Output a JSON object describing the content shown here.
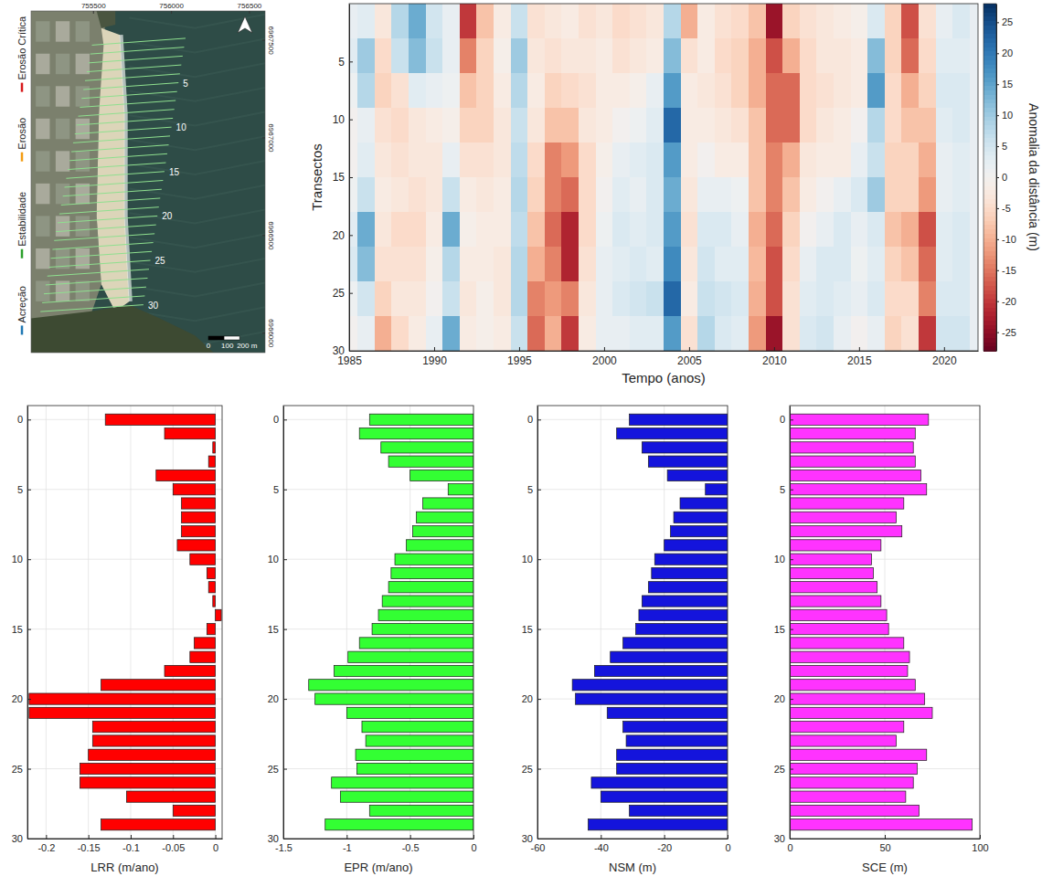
{
  "chart_data": [
    {
      "type": "map",
      "xlim": [
        755100,
        756600
      ],
      "ylim": [
        6965900,
        6967650
      ],
      "xticks": [
        755500,
        756000,
        756500
      ],
      "yticks": [
        6966000,
        6966500,
        6967000,
        6967500
      ],
      "categories": [
        "Erosão Crítica",
        "Erosão",
        "Estabilidade",
        "Acreção"
      ],
      "colors": [
        "#d7191c",
        "#f39c12",
        "#2ca02c",
        "#1f78b4"
      ],
      "legend": "left",
      "transect_labels": [
        5,
        10,
        15,
        20,
        25,
        30
      ],
      "scale_bar_ticks": [
        0,
        100,
        {
          "value": 200,
          "label": "200 m"
        }
      ]
    },
    {
      "type": "heatmap",
      "x": [
        1985,
        1986,
        1987,
        1988,
        1989,
        1990,
        1991,
        1992,
        1993,
        1994,
        1995,
        1996,
        1997,
        1998,
        1999,
        2000,
        2001,
        2002,
        2003,
        2004,
        2005,
        2006,
        2007,
        2008,
        2009,
        2010,
        2011,
        2012,
        2013,
        2014,
        2015,
        2016,
        2017,
        2018,
        2019,
        2020,
        2021,
        2022
      ],
      "y": [
        1.5,
        4.5,
        7.5,
        10.5,
        13.5,
        16.5,
        19.5,
        22.5,
        25.5,
        28.5
      ],
      "z": [
        [
          2,
          3,
          1,
          0,
          0,
          1,
          3,
          4,
          1,
          0
        ],
        [
          3,
          10,
          8,
          2,
          3,
          6,
          14,
          12,
          5,
          2
        ],
        [
          -3,
          -5,
          -6,
          -4,
          -3,
          -2,
          -3,
          -4,
          -6,
          -10
        ],
        [
          8,
          6,
          -4,
          -5,
          -4,
          -3,
          -5,
          -4,
          -3,
          -5
        ],
        [
          14,
          12,
          3,
          -3,
          -3,
          -4,
          -5,
          -4,
          -3,
          -2
        ],
        [
          5,
          6,
          2,
          -2,
          -3,
          -3,
          -2,
          -1,
          0,
          2
        ],
        [
          2,
          2,
          1,
          -1,
          2,
          6,
          14,
          8,
          6,
          14
        ],
        [
          -20,
          -14,
          -8,
          -6,
          -4,
          -2,
          -1,
          -2,
          -3,
          -2
        ],
        [
          -8,
          -6,
          -6,
          -6,
          -4,
          -3,
          -2,
          -2,
          -1,
          -1
        ],
        [
          -2,
          -1,
          -2,
          -3,
          -3,
          -2,
          -2,
          -3,
          -3,
          -2
        ],
        [
          6,
          10,
          8,
          6,
          7,
          8,
          7,
          8,
          8,
          6
        ],
        [
          -4,
          -3,
          -2,
          -3,
          -5,
          -6,
          -8,
          -10,
          -14,
          -16
        ],
        [
          -3,
          -4,
          -6,
          -8,
          -14,
          -14,
          -16,
          -14,
          -12,
          -10
        ],
        [
          -2,
          -3,
          -5,
          -8,
          -12,
          -16,
          -22,
          -22,
          -14,
          -20
        ],
        [
          -4,
          -3,
          -4,
          -3,
          -5,
          -5,
          -5,
          -4,
          -3,
          -2
        ],
        [
          -3,
          -2,
          -2,
          -2,
          -1,
          0,
          1,
          2,
          2,
          2
        ],
        [
          -5,
          -4,
          -2,
          0,
          2,
          3,
          4,
          3,
          4,
          2
        ],
        [
          -4,
          -3,
          -1,
          1,
          3,
          2,
          3,
          4,
          5,
          3
        ],
        [
          -3,
          -2,
          2,
          3,
          4,
          4,
          4,
          3,
          6,
          3
        ],
        [
          8,
          12,
          16,
          22,
          16,
          14,
          16,
          18,
          22,
          16
        ],
        [
          -10,
          -4,
          -2,
          -2,
          -2,
          -3,
          -4,
          -3,
          -2,
          -4
        ],
        [
          -2,
          -2,
          -3,
          -2,
          0,
          2,
          4,
          5,
          6,
          8
        ],
        [
          -4,
          -5,
          -4,
          -3,
          -2,
          2,
          4,
          3,
          5,
          4
        ],
        [
          -5,
          -6,
          -6,
          -4,
          -2,
          1,
          2,
          3,
          4,
          3
        ],
        [
          -8,
          -10,
          -10,
          -8,
          -8,
          -8,
          -10,
          -9,
          -10,
          -12
        ],
        [
          -24,
          -18,
          -16,
          -16,
          -14,
          -14,
          -16,
          -18,
          -18,
          -24
        ],
        [
          -6,
          -10,
          -16,
          -16,
          -10,
          -8,
          -6,
          -5,
          -4,
          -4
        ],
        [
          -4,
          -5,
          -5,
          -5,
          -3,
          -2,
          0,
          2,
          3,
          4
        ],
        [
          -3,
          -3,
          -4,
          -3,
          -2,
          0,
          2,
          4,
          4,
          5
        ],
        [
          -2,
          -3,
          -3,
          -2,
          -2,
          2,
          4,
          4,
          3,
          2
        ],
        [
          -1,
          -2,
          -2,
          0,
          2,
          4,
          2,
          1,
          2,
          0
        ],
        [
          4,
          12,
          16,
          8,
          6,
          10,
          4,
          3,
          4,
          2
        ],
        [
          -6,
          -6,
          -5,
          -5,
          -6,
          -6,
          -8,
          -6,
          -5,
          -6
        ],
        [
          -18,
          -16,
          -10,
          -8,
          -6,
          -6,
          -10,
          -8,
          -5,
          -4
        ],
        [
          -4,
          -5,
          -6,
          -8,
          -10,
          -12,
          -18,
          -16,
          -14,
          -20
        ],
        [
          2,
          3,
          4,
          3,
          2,
          2,
          3,
          3,
          4,
          5
        ],
        [
          4,
          3,
          4,
          4,
          3,
          3,
          4,
          4,
          4,
          5
        ],
        [
          2,
          2,
          2,
          2,
          2,
          2,
          2,
          2,
          2,
          2
        ]
      ],
      "xlim": [
        1985,
        2022
      ],
      "ylim": [
        0,
        30
      ],
      "xticks": [
        1985,
        1990,
        1995,
        2000,
        2005,
        2010,
        2015,
        2020
      ],
      "yticks": [
        5,
        10,
        15,
        20,
        25,
        30
      ],
      "xlabel": "Tempo (anos)",
      "ylabel": "Transectos",
      "colorbar": {
        "range": [
          -28,
          28
        ],
        "ticks": [
          -25,
          -20,
          -15,
          -10,
          -5,
          0,
          5,
          10,
          15,
          20,
          25
        ],
        "label": "Anomalia da distância (m)"
      }
    },
    {
      "type": "bar",
      "orientation": "horizontal",
      "y": [
        0,
        1,
        2,
        3,
        4,
        5,
        6,
        7,
        8,
        9,
        10,
        11,
        12,
        13,
        14,
        15,
        16,
        17,
        18,
        19,
        20,
        21,
        22,
        23,
        24,
        25,
        26,
        27,
        28,
        29
      ],
      "values": [
        -0.13,
        -0.06,
        -0.003,
        -0.008,
        -0.07,
        -0.05,
        -0.04,
        -0.04,
        -0.04,
        -0.045,
        -0.03,
        -0.01,
        -0.008,
        -0.003,
        0.007,
        -0.01,
        -0.025,
        -0.03,
        -0.06,
        -0.135,
        -0.22,
        -0.22,
        -0.145,
        -0.145,
        -0.15,
        -0.16,
        -0.16,
        -0.105,
        -0.05,
        -0.135
      ],
      "color": "#ff0000",
      "xlim": [
        -0.222,
        0.008
      ],
      "xticks": [
        -0.2,
        -0.15,
        -0.1,
        -0.05,
        0
      ],
      "ylim": [
        -1,
        30
      ],
      "yticks": [
        0,
        5,
        10,
        15,
        20,
        25,
        30
      ],
      "xlabel": "LRR (m/ano)",
      "grid": true
    },
    {
      "type": "bar",
      "orientation": "horizontal",
      "y": [
        0,
        1,
        2,
        3,
        4,
        5,
        6,
        7,
        8,
        9,
        10,
        11,
        12,
        13,
        14,
        15,
        16,
        17,
        18,
        19,
        20,
        21,
        22,
        23,
        24,
        25,
        26,
        27,
        28,
        29
      ],
      "values": [
        -0.82,
        -0.9,
        -0.73,
        -0.67,
        -0.5,
        -0.2,
        -0.4,
        -0.45,
        -0.48,
        -0.53,
        -0.62,
        -0.65,
        -0.67,
        -0.72,
        -0.75,
        -0.8,
        -0.9,
        -0.99,
        -1.1,
        -1.3,
        -1.25,
        -1.0,
        -0.88,
        -0.85,
        -0.93,
        -0.92,
        -1.12,
        -1.05,
        -0.82,
        -1.17
      ],
      "color": "#33ff33",
      "xlim": [
        -1.5,
        0
      ],
      "xticks": [
        -1.5,
        -1,
        -0.5,
        0
      ],
      "ylim": [
        -1,
        30
      ],
      "yticks": [
        0,
        5,
        10,
        15,
        20,
        25,
        30
      ],
      "xlabel": "EPR (m/ano)",
      "grid": true
    },
    {
      "type": "bar",
      "orientation": "horizontal",
      "y": [
        0,
        1,
        2,
        3,
        4,
        5,
        6,
        7,
        8,
        9,
        10,
        11,
        12,
        13,
        14,
        15,
        16,
        17,
        18,
        19,
        20,
        21,
        22,
        23,
        24,
        25,
        26,
        27,
        28,
        29
      ],
      "values": [
        -31,
        -35,
        -27,
        -25,
        -19,
        -7,
        -15,
        -17,
        -18,
        -20,
        -23,
        -24,
        -25,
        -27,
        -28,
        -29,
        -33,
        -37,
        -42,
        -49,
        -48,
        -38,
        -33,
        -32,
        -35,
        -35,
        -43,
        -40,
        -31,
        -44
      ],
      "color": "#1414dc",
      "xlim": [
        -60,
        0
      ],
      "xticks": [
        -60,
        -40,
        -20,
        0
      ],
      "ylim": [
        -1,
        30
      ],
      "yticks": [
        0,
        5,
        10,
        15,
        20,
        25,
        30
      ],
      "xlabel": "NSM (m)",
      "grid": true
    },
    {
      "type": "bar",
      "orientation": "horizontal",
      "y": [
        0,
        1,
        2,
        3,
        4,
        5,
        6,
        7,
        8,
        9,
        10,
        11,
        12,
        13,
        14,
        15,
        16,
        17,
        18,
        19,
        20,
        21,
        22,
        23,
        24,
        25,
        26,
        27,
        28,
        29
      ],
      "values": [
        73,
        66,
        65,
        66,
        69,
        72,
        60,
        56,
        59,
        48,
        43,
        44,
        46,
        48,
        51,
        52,
        60,
        63,
        62,
        66,
        71,
        75,
        60,
        56,
        72,
        67,
        65,
        61,
        68,
        96
      ],
      "color": "#ff33ff",
      "xlim": [
        0,
        100
      ],
      "xticks": [
        0,
        50,
        100
      ],
      "ylim": [
        -1,
        30
      ],
      "yticks": [
        0,
        5,
        10,
        15,
        20,
        25,
        30
      ],
      "xlabel": "SCE (m)",
      "grid": true
    }
  ]
}
